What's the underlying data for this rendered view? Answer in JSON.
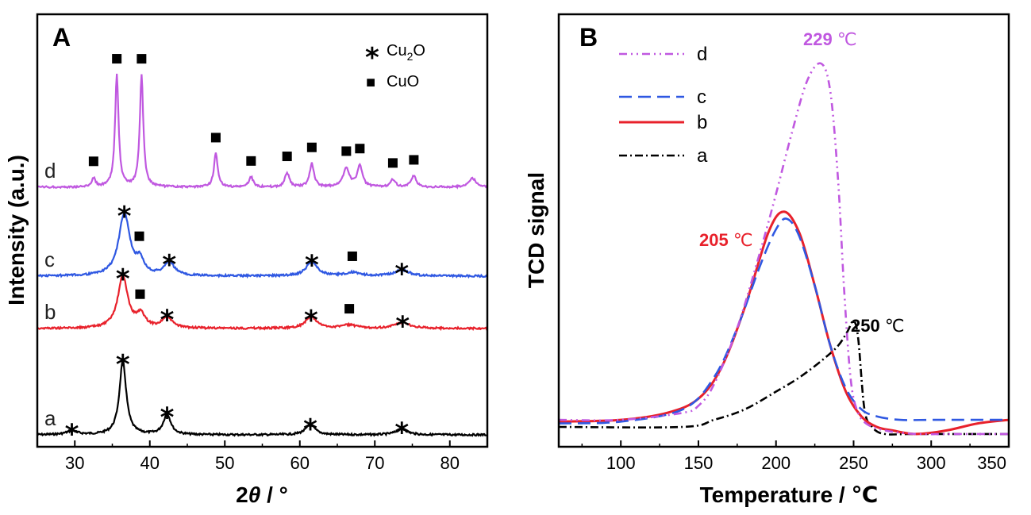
{
  "chart_data": [
    {
      "type": "line",
      "panel": "A",
      "xlabel_prefix": "2",
      "xlabel_theta": "θ",
      "xlabel_suffix": " / °",
      "ylabel": "Intensity (a.u.)",
      "xlim": [
        25,
        85
      ],
      "xticks": [
        30,
        40,
        50,
        60,
        70,
        80
      ],
      "yticks": false,
      "grid": false,
      "legend": [
        {
          "marker": "*",
          "text": "Cu",
          "sub": "2",
          "tail": "O"
        },
        {
          "marker": "■",
          "text": "CuO"
        }
      ],
      "series": [
        {
          "name": "a",
          "color": "#000000",
          "baseline": 0.0,
          "peaks": [
            [
              29.6,
              0.05,
              0.9
            ],
            [
              36.4,
              1.0,
              0.55
            ],
            [
              42.3,
              0.28,
              0.6
            ],
            [
              61.4,
              0.13,
              0.8
            ],
            [
              73.6,
              0.08,
              0.9
            ]
          ],
          "stars": [
            29.6,
            36.4,
            42.3,
            61.4,
            73.6
          ],
          "squares": []
        },
        {
          "name": "b",
          "color": "#e8212b",
          "baseline": 1.18,
          "peaks": [
            [
              36.4,
              0.62,
              0.8
            ],
            [
              38.8,
              0.15,
              0.7
            ],
            [
              42.3,
              0.13,
              0.8
            ],
            [
              61.5,
              0.14,
              0.9
            ],
            [
              66.5,
              0.04,
              1.2
            ],
            [
              73.7,
              0.07,
              1.2
            ]
          ],
          "stars": [
            36.4,
            42.3,
            61.5,
            73.7
          ],
          "squares": [
            38.7,
            66.6
          ]
        },
        {
          "name": "c",
          "color": "#2f58e2",
          "baseline": 1.88,
          "peaks": [
            [
              36.6,
              0.74,
              0.9
            ],
            [
              38.7,
              0.16,
              0.6
            ],
            [
              42.6,
              0.16,
              0.8
            ],
            [
              61.6,
              0.17,
              0.9
            ],
            [
              67.0,
              0.04,
              1.2
            ],
            [
              73.6,
              0.07,
              1.2
            ]
          ],
          "stars": [
            36.6,
            42.6,
            61.6,
            73.6
          ],
          "squares": [
            38.6,
            67.0
          ]
        },
        {
          "name": "d",
          "color": "#c058e0",
          "baseline": 2.7,
          "peaks": [
            [
              32.5,
              0.08,
              0.3
            ],
            [
              35.6,
              1.0,
              0.28
            ],
            [
              38.9,
              1.0,
              0.28
            ],
            [
              48.8,
              0.3,
              0.3
            ],
            [
              53.5,
              0.09,
              0.35
            ],
            [
              58.3,
              0.13,
              0.35
            ],
            [
              61.6,
              0.21,
              0.35
            ],
            [
              66.2,
              0.17,
              0.5
            ],
            [
              68.0,
              0.19,
              0.4
            ],
            [
              72.4,
              0.07,
              0.4
            ],
            [
              75.2,
              0.1,
              0.4
            ],
            [
              83.0,
              0.08,
              0.6
            ]
          ],
          "stars": [],
          "squares": [
            32.5,
            35.6,
            38.9,
            48.8,
            53.5,
            58.3,
            61.6,
            66.2,
            68.0,
            72.4,
            75.2
          ]
        }
      ]
    },
    {
      "type": "line",
      "panel": "B",
      "xlabel": "Temperature / ℃",
      "ylabel": "TCD signal",
      "xlim": [
        60,
        350
      ],
      "ylim": [
        -0.05,
        1.12
      ],
      "xticks": [
        100,
        150,
        200,
        250,
        300,
        350
      ],
      "yticks": false,
      "grid": false,
      "legend_position": "top-left",
      "series": [
        {
          "name": "d",
          "color": "#c058e0",
          "dash": "10,5,2,5,2,5",
          "x": [
            60,
            100,
            140,
            150,
            160,
            175,
            190,
            200,
            210,
            220,
            229,
            235,
            240,
            244,
            248,
            252,
            258,
            270,
            290,
            310,
            330,
            350
          ],
          "y": [
            0.02,
            0.02,
            0.04,
            0.06,
            0.12,
            0.28,
            0.5,
            0.66,
            0.83,
            0.98,
            1.03,
            0.95,
            0.7,
            0.38,
            0.14,
            0.05,
            0.01,
            -0.01,
            -0.02,
            -0.02,
            -0.02,
            -0.02
          ]
        },
        {
          "name": "c",
          "color": "#2f58e2",
          "dash": "16,8",
          "x": [
            60,
            100,
            140,
            160,
            175,
            190,
            200,
            207,
            215,
            225,
            235,
            245,
            255,
            265,
            280,
            300,
            320,
            350
          ],
          "y": [
            0.01,
            0.015,
            0.05,
            0.14,
            0.28,
            0.46,
            0.56,
            0.59,
            0.54,
            0.4,
            0.23,
            0.11,
            0.05,
            0.03,
            0.02,
            0.02,
            0.02,
            0.02
          ]
        },
        {
          "name": "b",
          "color": "#e8212b",
          "dash": "",
          "x": [
            60,
            100,
            130,
            150,
            165,
            180,
            195,
            205,
            215,
            225,
            235,
            245,
            255,
            265,
            275,
            290,
            310,
            330,
            350
          ],
          "y": [
            0.015,
            0.02,
            0.04,
            0.08,
            0.17,
            0.34,
            0.55,
            0.61,
            0.55,
            0.4,
            0.23,
            0.1,
            0.03,
            0.0,
            -0.01,
            -0.02,
            -0.01,
            0.01,
            0.02
          ]
        },
        {
          "name": "a",
          "color": "#000000",
          "dash": "10,4,2,4",
          "x": [
            60,
            140,
            160,
            180,
            200,
            215,
            230,
            240,
            246,
            250,
            253,
            257,
            262,
            270,
            290,
            350
          ],
          "y": [
            0.0,
            0.0,
            0.02,
            0.05,
            0.1,
            0.14,
            0.19,
            0.23,
            0.27,
            0.3,
            0.25,
            0.05,
            0.0,
            -0.02,
            -0.02,
            -0.02
          ]
        }
      ],
      "annotations": [
        {
          "num": "229",
          "unit": " ℃",
          "color": "#c058e0"
        },
        {
          "num": "205",
          "unit": " ℃",
          "color": "#e8212b"
        },
        {
          "num": "250",
          "unit": " ℃",
          "color": "#000000"
        }
      ]
    }
  ]
}
